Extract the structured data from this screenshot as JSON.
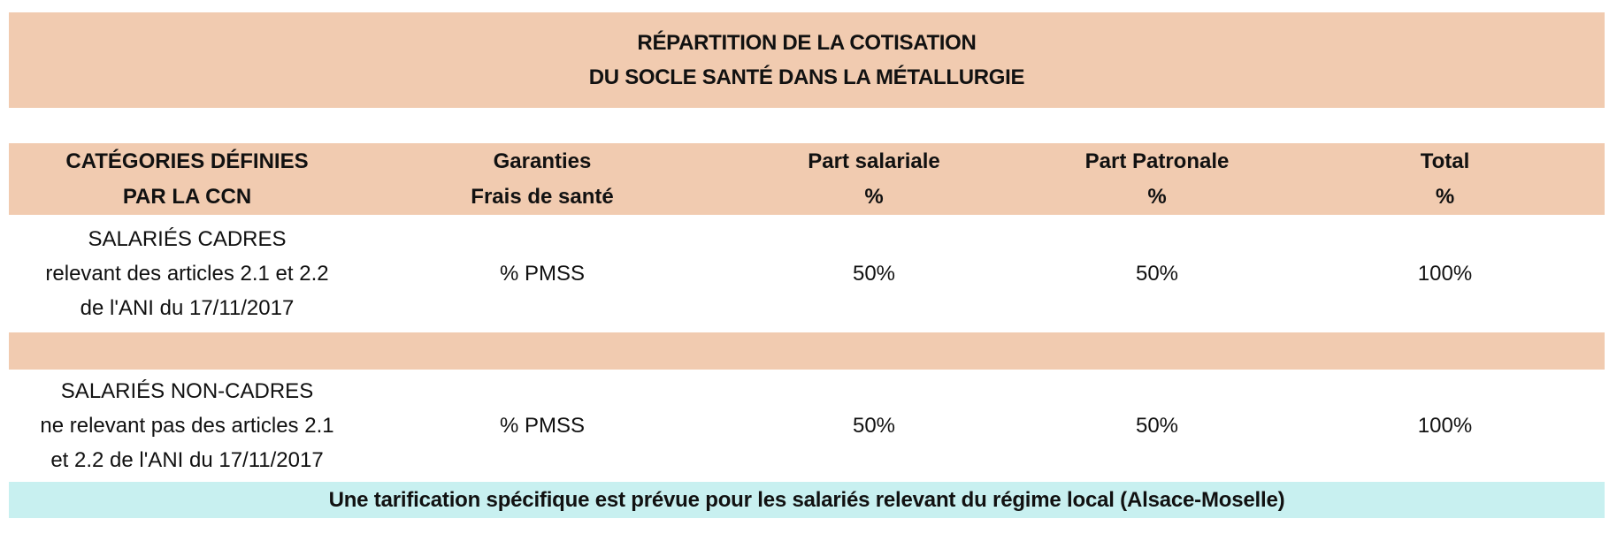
{
  "title": {
    "line1": "RÉPARTITION DE LA COTISATION",
    "line2": "DU SOCLE SANTÉ DANS LA MÉTALLURGIE"
  },
  "colors": {
    "peach_band": "#f1cbb0",
    "cyan_band": "#c8f0f0",
    "text": "#111111"
  },
  "table": {
    "headers": [
      {
        "line1": "CATÉGORIES DÉFINIES",
        "line2": "PAR LA CCN"
      },
      {
        "line1": "Garanties",
        "line2": "Frais de santé"
      },
      {
        "line1": "Part salariale",
        "line2": "%"
      },
      {
        "line1": "Part Patronale",
        "line2": "%"
      },
      {
        "line1": "Total",
        "line2": "%"
      }
    ],
    "rows": [
      {
        "category": {
          "line1": "SALARIÉS CADRES",
          "line2": "relevant des articles 2.1 et 2.2",
          "line3": "de l'ANI du 17/11/2017"
        },
        "garanties": "% PMSS",
        "part_salariale": "50%",
        "part_patronale": "50%",
        "total": "100%"
      },
      {
        "category": {
          "line1": "SALARIÉS NON-CADRES",
          "line2": "ne relevant pas des articles 2.1",
          "line3": "et 2.2 de l'ANI du 17/11/2017"
        },
        "garanties": "% PMSS",
        "part_salariale": "50%",
        "part_patronale": "50%",
        "total": "100%"
      }
    ]
  },
  "footer": {
    "note": "Une tarification spécifique est prévue pour les salariés relevant du régime local (Alsace-Moselle)"
  }
}
